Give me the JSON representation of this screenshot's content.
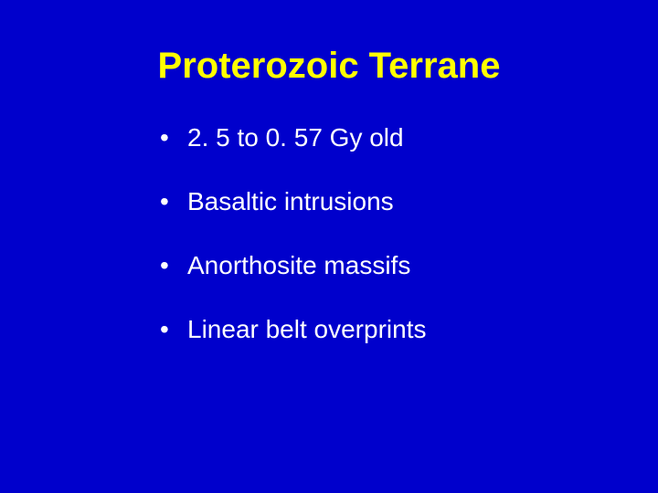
{
  "slide": {
    "background_color": "#0000cc",
    "title": {
      "text": "Proterozoic Terrane",
      "color": "#ffff00",
      "fontsize": 40,
      "font_weight": "bold"
    },
    "bullets": {
      "color": "#ffffff",
      "fontsize": 28,
      "marker": "•",
      "items": [
        "2. 5 to 0. 57 Gy old",
        "Basaltic intrusions",
        "Anorthosite massifs",
        "Linear belt overprints"
      ]
    }
  }
}
